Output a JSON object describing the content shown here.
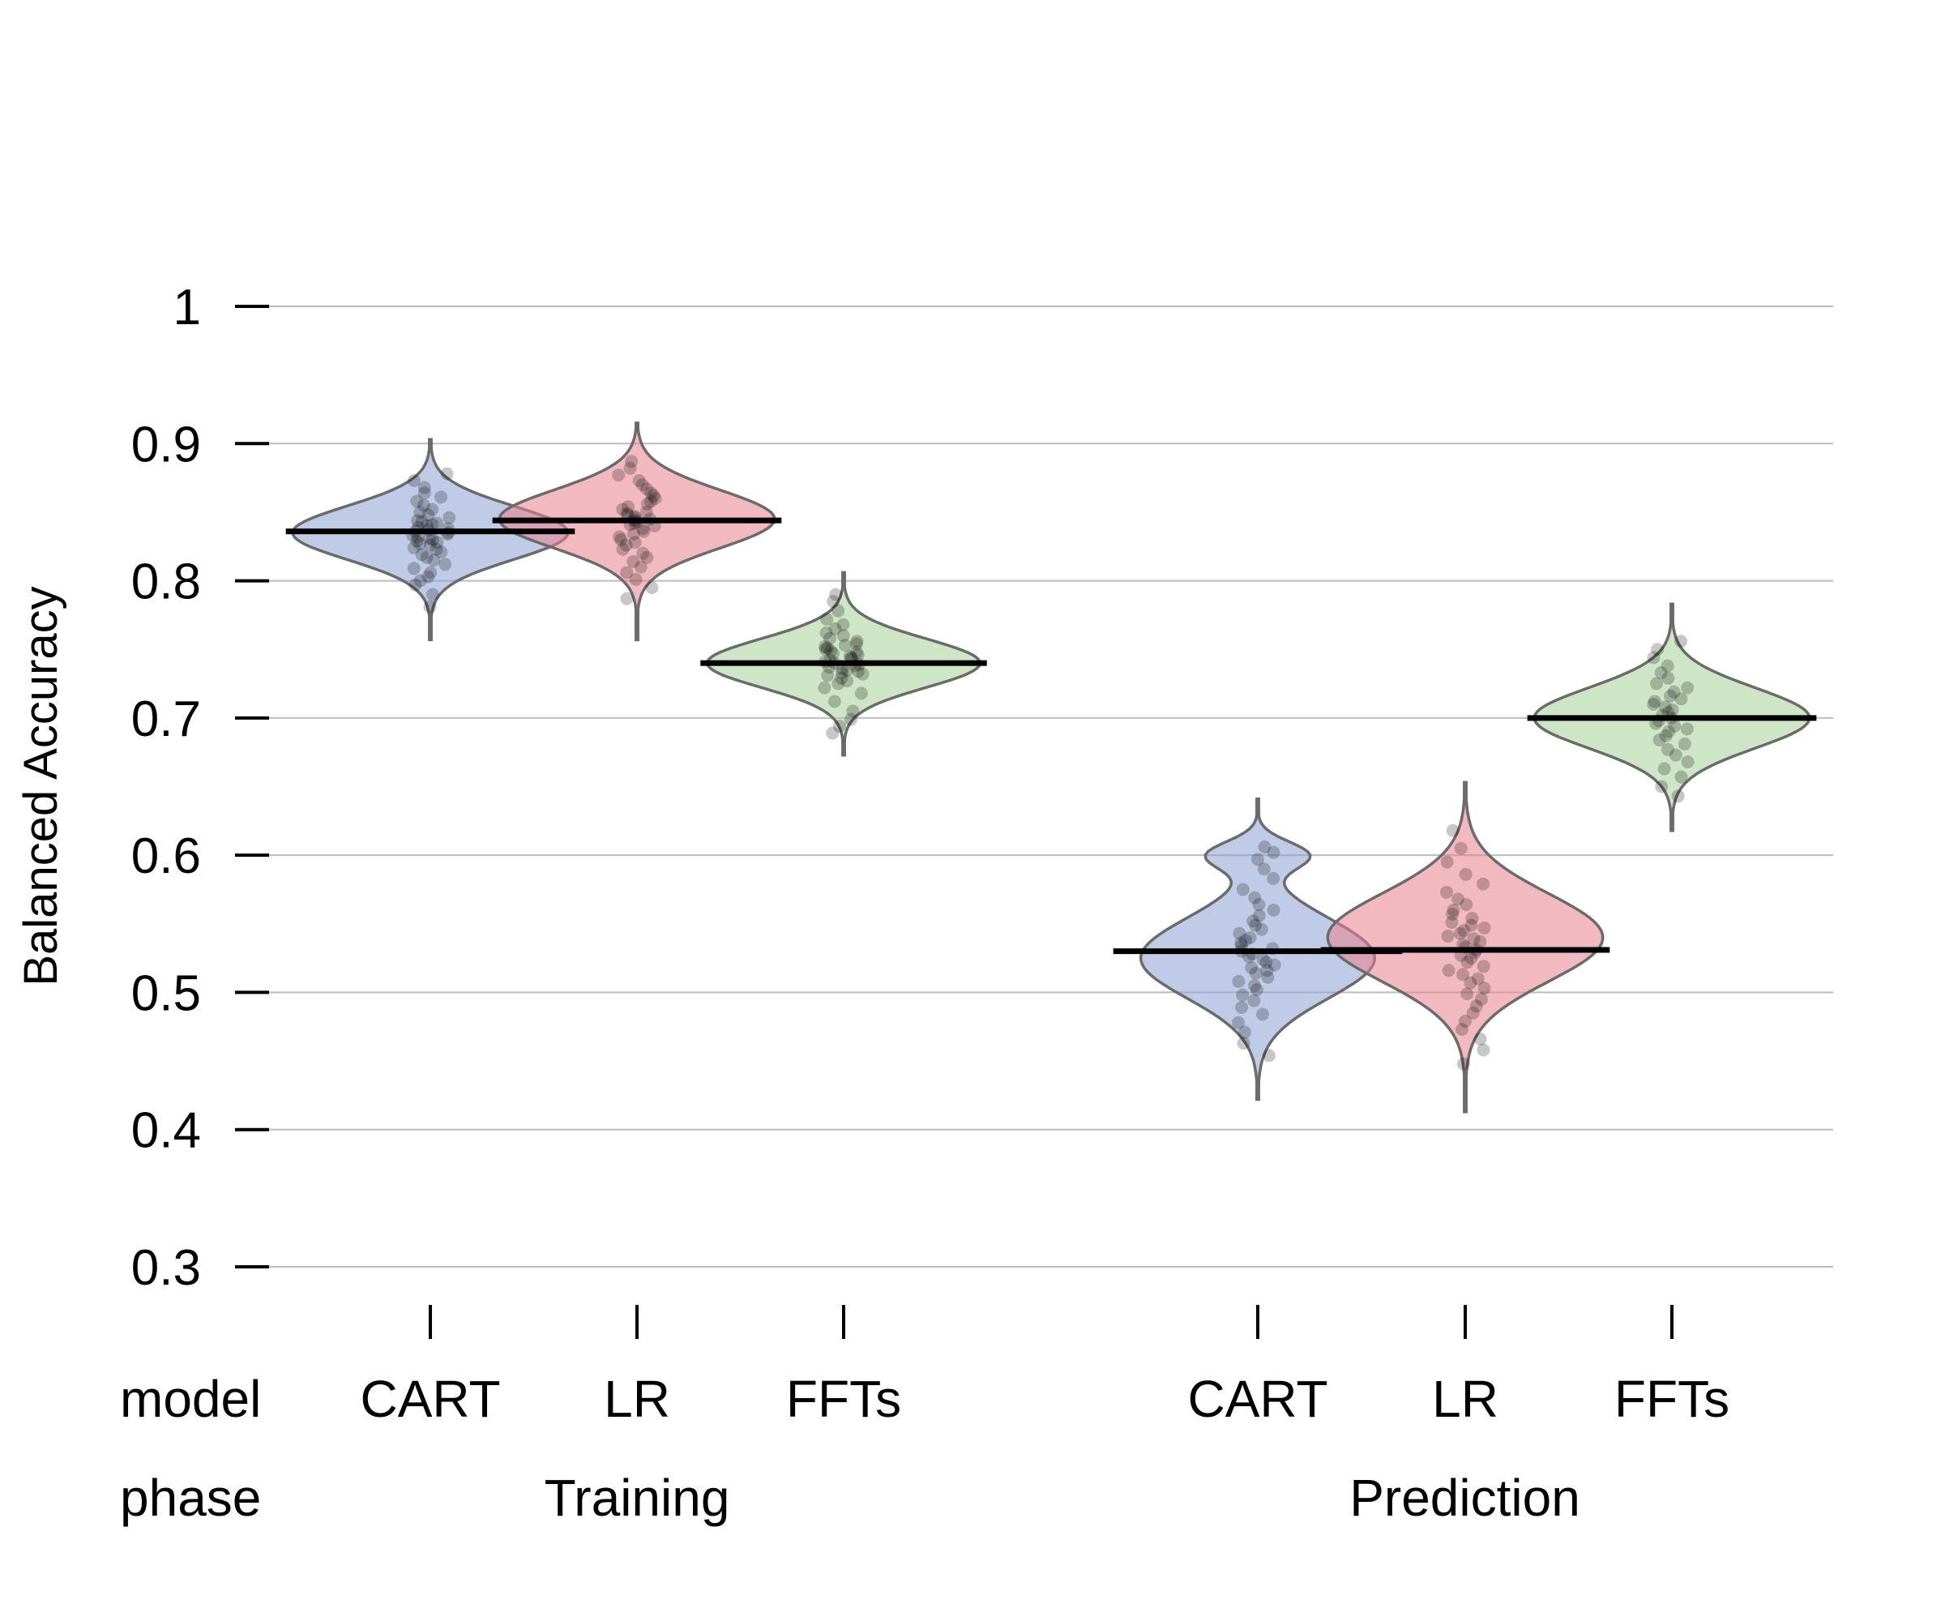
{
  "chart_data": {
    "type": "violin",
    "ylabel": "Balanced Accuracy",
    "ylim": [
      0.3,
      1
    ],
    "yticks": [
      0.3,
      0.4,
      0.5,
      0.6,
      0.7,
      0.8,
      0.9,
      1
    ],
    "ytick_labels": [
      "0.3",
      "0.4",
      "0.5",
      "0.6",
      "0.7",
      "0.8",
      "0.9",
      "1"
    ],
    "grid": true,
    "row_titles": {
      "model": "model",
      "phase": "phase"
    },
    "groups": [
      {
        "phase": "Training",
        "items": [
          {
            "model": "CART",
            "color": "#8da0d4",
            "median": 0.836,
            "min": 0.757,
            "max": 0.903,
            "spread": 0.111,
            "peak": 0.835,
            "points": [
              0.781,
              0.79,
              0.797,
              0.8,
              0.803,
              0.806,
              0.809,
              0.812,
              0.815,
              0.817,
              0.819,
              0.821,
              0.823,
              0.824,
              0.826,
              0.827,
              0.828,
              0.829,
              0.83,
              0.831,
              0.832,
              0.833,
              0.834,
              0.835,
              0.836,
              0.837,
              0.838,
              0.839,
              0.84,
              0.841,
              0.842,
              0.843,
              0.844,
              0.846,
              0.848,
              0.85,
              0.852,
              0.855,
              0.858,
              0.861,
              0.864,
              0.868,
              0.873,
              0.878
            ]
          },
          {
            "model": "LR",
            "color": "#e9808e",
            "median": 0.844,
            "min": 0.757,
            "max": 0.915,
            "spread": 0.111,
            "peak": 0.845,
            "points": [
              0.787,
              0.795,
              0.801,
              0.806,
              0.81,
              0.814,
              0.817,
              0.82,
              0.823,
              0.826,
              0.828,
              0.83,
              0.832,
              0.834,
              0.836,
              0.838,
              0.84,
              0.841,
              0.842,
              0.843,
              0.844,
              0.845,
              0.846,
              0.847,
              0.848,
              0.849,
              0.85,
              0.852,
              0.854,
              0.856,
              0.858,
              0.86,
              0.862,
              0.864,
              0.867,
              0.87,
              0.873,
              0.877,
              0.882,
              0.887
            ]
          }
        ]
      },
      {
        "phase": "Training",
        "items": [
          {
            "model": "FFTs",
            "color": "#a6cf98",
            "median": 0.74,
            "min": 0.673,
            "max": 0.806,
            "spread": 0.11,
            "peak": 0.74,
            "points": [
              0.689,
              0.694,
              0.699,
              0.705,
              0.712,
              0.718,
              0.722,
              0.725,
              0.727,
              0.729,
              0.731,
              0.732,
              0.733,
              0.734,
              0.735,
              0.736,
              0.737,
              0.738,
              0.739,
              0.74,
              0.741,
              0.742,
              0.743,
              0.744,
              0.745,
              0.746,
              0.747,
              0.748,
              0.749,
              0.75,
              0.751,
              0.752,
              0.753,
              0.754,
              0.756,
              0.758,
              0.76,
              0.762,
              0.765,
              0.768,
              0.772,
              0.778,
              0.785,
              0.79
            ]
          }
        ]
      },
      {
        "phase": "Prediction",
        "items": [
          {
            "model": "CART",
            "color": "#8da0d4",
            "median": 0.53,
            "min": 0.422,
            "max": 0.641,
            "spread": 0.111,
            "peak": 0.525,
            "points": [
              0.454,
              0.463,
              0.471,
              0.478,
              0.484,
              0.489,
              0.494,
              0.498,
              0.502,
              0.505,
              0.508,
              0.511,
              0.514,
              0.516,
              0.518,
              0.52,
              0.522,
              0.524,
              0.526,
              0.528,
              0.53,
              0.532,
              0.534,
              0.536,
              0.538,
              0.54,
              0.543,
              0.546,
              0.549,
              0.552,
              0.556,
              0.56,
              0.564,
              0.569,
              0.575,
              0.583,
              0.59,
              0.597,
              0.602,
              0.606
            ]
          },
          {
            "model": "LR",
            "color": "#e9808e",
            "median": 0.531,
            "min": 0.413,
            "max": 0.653,
            "spread": 0.111,
            "peak": 0.54,
            "points": [
              0.448,
              0.458,
              0.466,
              0.473,
              0.479,
              0.485,
              0.49,
              0.495,
              0.499,
              0.503,
              0.507,
              0.51,
              0.513,
              0.516,
              0.519,
              0.522,
              0.525,
              0.527,
              0.529,
              0.531,
              0.533,
              0.535,
              0.537,
              0.539,
              0.541,
              0.543,
              0.545,
              0.547,
              0.549,
              0.551,
              0.554,
              0.557,
              0.56,
              0.564,
              0.568,
              0.573,
              0.579,
              0.586,
              0.595,
              0.605,
              0.618
            ]
          }
        ]
      },
      {
        "phase": "Prediction",
        "items": [
          {
            "model": "FFTs",
            "color": "#a6cf98",
            "median": 0.7,
            "min": 0.618,
            "max": 0.783,
            "spread": 0.111,
            "peak": 0.7,
            "points": [
              0.643,
              0.65,
              0.657,
              0.663,
              0.668,
              0.673,
              0.677,
              0.681,
              0.684,
              0.687,
              0.69,
              0.692,
              0.694,
              0.696,
              0.698,
              0.7,
              0.702,
              0.704,
              0.706,
              0.708,
              0.71,
              0.712,
              0.714,
              0.716,
              0.719,
              0.722,
              0.725,
              0.729,
              0.733,
              0.738,
              0.744,
              0.75,
              0.756
            ]
          }
        ]
      }
    ]
  }
}
